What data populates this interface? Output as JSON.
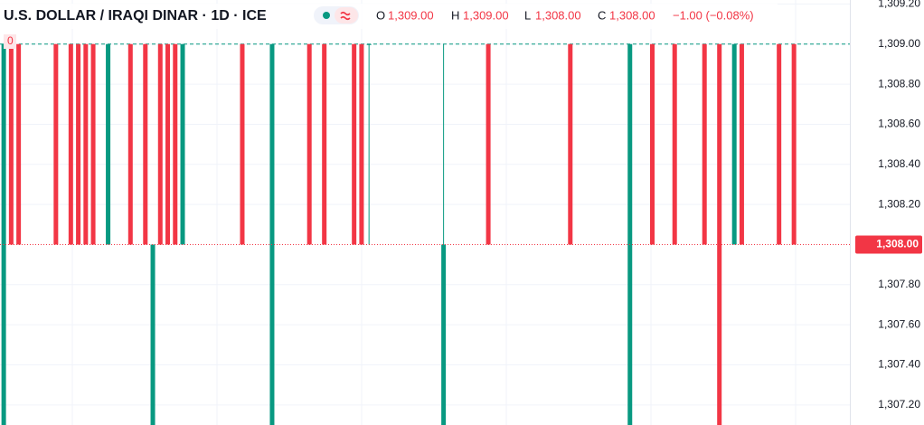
{
  "chart_data": {
    "type": "candlestick",
    "title": "U.S. DOLLAR / IRAQI DINAR · 1D · ICE",
    "ohlc_legend": {
      "o_label": "O",
      "o_value": "1,309.00",
      "h_label": "H",
      "h_value": "1,309.00",
      "l_label": "L",
      "l_value": "1,308.00",
      "c_label": "C",
      "c_value": "1,308.00",
      "change": "−1.00 (−0.08%)"
    },
    "badge": "0",
    "categories": [
      null,
      null,
      null,
      null,
      null,
      null,
      null,
      null,
      null,
      null,
      null,
      null,
      null,
      null,
      null,
      null,
      null,
      null,
      null,
      null,
      null,
      null,
      null,
      null,
      null,
      null,
      null,
      null,
      null,
      null,
      null,
      null,
      null,
      null,
      null,
      null,
      null,
      null,
      null,
      null,
      null,
      null,
      null,
      null,
      null,
      null,
      null,
      null,
      null,
      null,
      null,
      null,
      null,
      null,
      null,
      null,
      null,
      null,
      null,
      null,
      null,
      null,
      null,
      null,
      null,
      null,
      null,
      null,
      null,
      null,
      null,
      null,
      null,
      null,
      null,
      null,
      null,
      null,
      null,
      null,
      null,
      null,
      null,
      null,
      null,
      null,
      null,
      null,
      null,
      null,
      null,
      null,
      null,
      null,
      null,
      null,
      null,
      null,
      null,
      null,
      null,
      null,
      null,
      null,
      null,
      null,
      null,
      null,
      null,
      null,
      null,
      null,
      null,
      null
    ],
    "open": [
      1307.1,
      1309,
      1309,
      null,
      null,
      null,
      null,
      1309,
      null,
      1309,
      1309,
      1309,
      1309,
      null,
      1308,
      null,
      null,
      1309,
      null,
      1309,
      1307.1,
      1309,
      1309,
      1309,
      1308,
      null,
      null,
      null,
      null,
      null,
      null,
      null,
      1309,
      null,
      null,
      null,
      1307.1,
      null,
      null,
      null,
      null,
      1309,
      null,
      1309,
      null,
      null,
      null,
      1309,
      1309,
      1309,
      null,
      null,
      null,
      null,
      null,
      null,
      null,
      null,
      null,
      1307.1,
      null,
      null,
      null,
      null,
      null,
      1309,
      null,
      null,
      null,
      null,
      null,
      null,
      null,
      null,
      null,
      null,
      1309,
      null,
      null,
      null,
      null,
      null,
      null,
      null,
      1307.1,
      null,
      null,
      1309,
      null,
      null,
      1309,
      null,
      null,
      null,
      1309,
      null,
      1309,
      null,
      1308,
      1309,
      null,
      null,
      null,
      null,
      1309,
      null,
      1309,
      null,
      null,
      null,
      null,
      null,
      null,
      null
    ],
    "close": [
      1309,
      1308,
      1308,
      null,
      null,
      null,
      null,
      1308,
      null,
      1308,
      1308,
      1308,
      1308,
      null,
      1309,
      null,
      null,
      1308,
      null,
      1308,
      1308,
      1308,
      1308,
      1308,
      1309,
      null,
      null,
      null,
      null,
      null,
      null,
      null,
      1308,
      null,
      null,
      null,
      1309,
      null,
      null,
      null,
      null,
      1308,
      null,
      1308,
      null,
      null,
      null,
      1308,
      1308,
      1309,
      null,
      null,
      null,
      null,
      null,
      null,
      null,
      null,
      null,
      1308,
      null,
      null,
      null,
      null,
      null,
      1308,
      null,
      null,
      null,
      null,
      null,
      null,
      null,
      null,
      null,
      null,
      1308,
      null,
      null,
      null,
      null,
      null,
      null,
      null,
      1309,
      null,
      null,
      1308,
      null,
      null,
      1308,
      null,
      null,
      null,
      1308,
      null,
      1307.1,
      null,
      1309,
      1308,
      null,
      null,
      null,
      null,
      1308,
      null,
      1308,
      null,
      null,
      null,
      null,
      null,
      null,
      null
    ],
    "high": [
      1309,
      1309,
      1309,
      null,
      null,
      null,
      null,
      1309,
      null,
      1309,
      1309,
      1309,
      1309,
      null,
      1309,
      null,
      null,
      1309,
      null,
      1309,
      1308,
      1309,
      1309,
      1309,
      1309,
      null,
      null,
      null,
      null,
      null,
      null,
      null,
      1309,
      null,
      null,
      null,
      1309,
      null,
      null,
      null,
      null,
      1309,
      null,
      1309,
      null,
      null,
      null,
      1309,
      1309,
      1309,
      null,
      null,
      null,
      null,
      null,
      null,
      null,
      null,
      null,
      1309,
      null,
      null,
      null,
      null,
      null,
      1309,
      null,
      null,
      null,
      null,
      null,
      null,
      null,
      null,
      null,
      null,
      1309,
      null,
      null,
      null,
      null,
      null,
      null,
      null,
      1309,
      null,
      null,
      1309,
      null,
      null,
      1309,
      null,
      null,
      null,
      1309,
      null,
      1309,
      null,
      1309,
      1309,
      null,
      null,
      null,
      null,
      1309,
      null,
      1309,
      null,
      null,
      null,
      null,
      null,
      null,
      null
    ],
    "low": [
      1307.1,
      1308,
      1308,
      null,
      null,
      null,
      null,
      1308,
      null,
      1308,
      1308,
      1308,
      1308,
      null,
      1308,
      null,
      null,
      1308,
      null,
      1308,
      1307.1,
      1308,
      1308,
      1308,
      1308,
      null,
      null,
      null,
      null,
      null,
      null,
      null,
      1308,
      null,
      null,
      null,
      1307.1,
      null,
      null,
      null,
      null,
      1308,
      null,
      1308,
      null,
      null,
      null,
      1308,
      1308,
      1308,
      null,
      null,
      null,
      null,
      null,
      null,
      null,
      null,
      null,
      1307.1,
      null,
      null,
      null,
      null,
      null,
      1308,
      null,
      null,
      null,
      null,
      null,
      null,
      null,
      null,
      null,
      null,
      1308,
      null,
      null,
      null,
      null,
      null,
      null,
      null,
      1307.1,
      null,
      null,
      1308,
      null,
      null,
      1308,
      null,
      null,
      null,
      1308,
      null,
      1307.1,
      null,
      1308,
      1308,
      null,
      null,
      null,
      null,
      1308,
      null,
      1308,
      null,
      null,
      null,
      null,
      null,
      null,
      null
    ],
    "up_color": "#089981",
    "down_color": "#f23645",
    "ylim": [
      1307.1,
      1309.22
    ],
    "yticks": [
      {
        "value": 1307.2,
        "label": "1,307.20"
      },
      {
        "value": 1307.4,
        "label": "1,307.40"
      },
      {
        "value": 1307.6,
        "label": "1,307.60"
      },
      {
        "value": 1307.8,
        "label": "1,307.80"
      },
      {
        "value": 1308.2,
        "label": "1,308.20"
      },
      {
        "value": 1308.4,
        "label": "1,308.40"
      },
      {
        "value": 1308.6,
        "label": "1,308.60"
      },
      {
        "value": 1308.8,
        "label": "1,308.80"
      },
      {
        "value": 1309,
        "label": "1,309.00"
      },
      {
        "value": 1309.2,
        "label": "1,309.20"
      }
    ],
    "high_line": 1309,
    "last_price": {
      "value": 1308,
      "label": "1,308.00"
    },
    "grid": true
  }
}
